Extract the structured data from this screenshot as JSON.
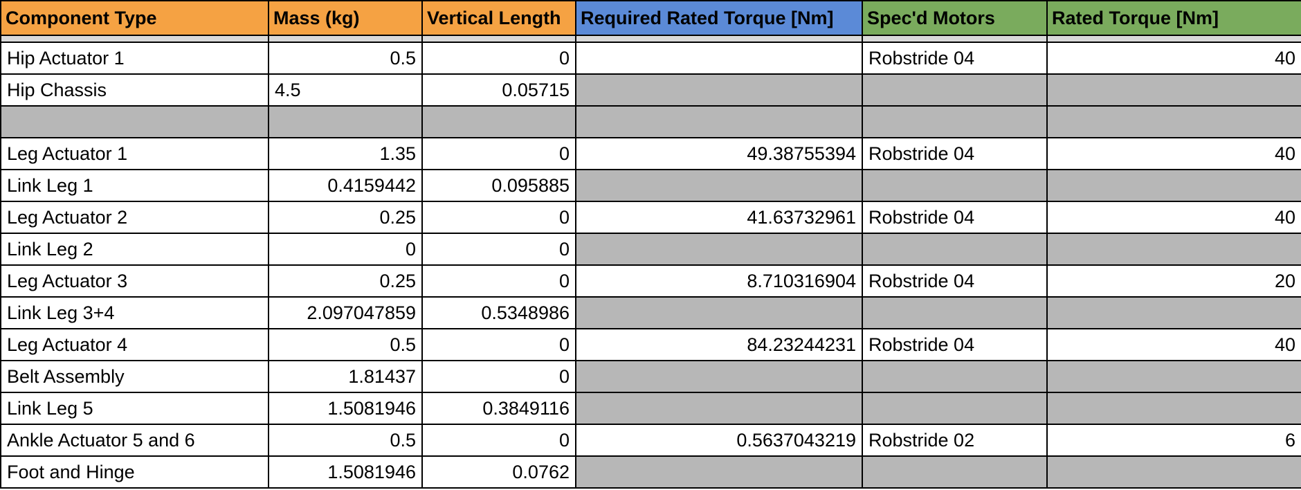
{
  "headers": {
    "component_type": "Component Type",
    "mass": "Mass (kg)",
    "vertical_length": "Vertical Length",
    "required_torque": "Required Rated Torque [Nm]",
    "specd_motors": "Spec'd Motors",
    "rated_torque": "Rated Torque [Nm]"
  },
  "colors": {
    "orange_header": "#f5a243",
    "blue_header": "#5b8ad7",
    "green_header": "#7aab5d",
    "filler_gray": "#b7b7b7"
  },
  "rows": [
    {
      "component": "Hip Actuator 1",
      "mass": "0.5",
      "length": "0",
      "required": "",
      "motor": "Robstride 04",
      "rated": "40"
    },
    {
      "component": "Hip Chassis",
      "mass": "4.5",
      "length": "0.05715",
      "required": "",
      "motor": "",
      "rated": ""
    },
    {
      "component": "",
      "mass": "",
      "length": "",
      "required": "",
      "motor": "",
      "rated": ""
    },
    {
      "component": "Leg Actuator 1",
      "mass": "1.35",
      "length": "0",
      "required": "49.38755394",
      "motor": "Robstride 04",
      "rated": "40"
    },
    {
      "component": "Link Leg 1",
      "mass": "0.4159442",
      "length": "0.095885",
      "required": "",
      "motor": "",
      "rated": ""
    },
    {
      "component": "Leg Actuator 2",
      "mass": "0.25",
      "length": "0",
      "required": "41.63732961",
      "motor": "Robstride 04",
      "rated": "40"
    },
    {
      "component": "Link Leg 2",
      "mass": "0",
      "length": "0",
      "required": "",
      "motor": "",
      "rated": ""
    },
    {
      "component": "Leg Actuator 3",
      "mass": "0.25",
      "length": "0",
      "required": "8.710316904",
      "motor": "Robstride 04",
      "rated": "20"
    },
    {
      "component": "Link Leg 3+4",
      "mass": "2.097047859",
      "length": "0.5348986",
      "required": "",
      "motor": "",
      "rated": ""
    },
    {
      "component": "Leg Actuator 4",
      "mass": "0.5",
      "length": "0",
      "required": "84.23244231",
      "motor": "Robstride 04",
      "rated": "40"
    },
    {
      "component": "Belt Assembly",
      "mass": "1.81437",
      "length": "0",
      "required": "",
      "motor": "",
      "rated": ""
    },
    {
      "component": "Link Leg 5",
      "mass": "1.5081946",
      "length": "0.3849116",
      "required": "",
      "motor": "",
      "rated": ""
    },
    {
      "component": "Ankle Actuator 5 and 6",
      "mass": "0.5",
      "length": "0",
      "required": "0.5637043219",
      "motor": "Robstride 02",
      "rated": "6"
    },
    {
      "component": "Foot and Hinge",
      "mass": "1.5081946",
      "length": "0.0762",
      "required": "",
      "motor": "",
      "rated": ""
    }
  ]
}
